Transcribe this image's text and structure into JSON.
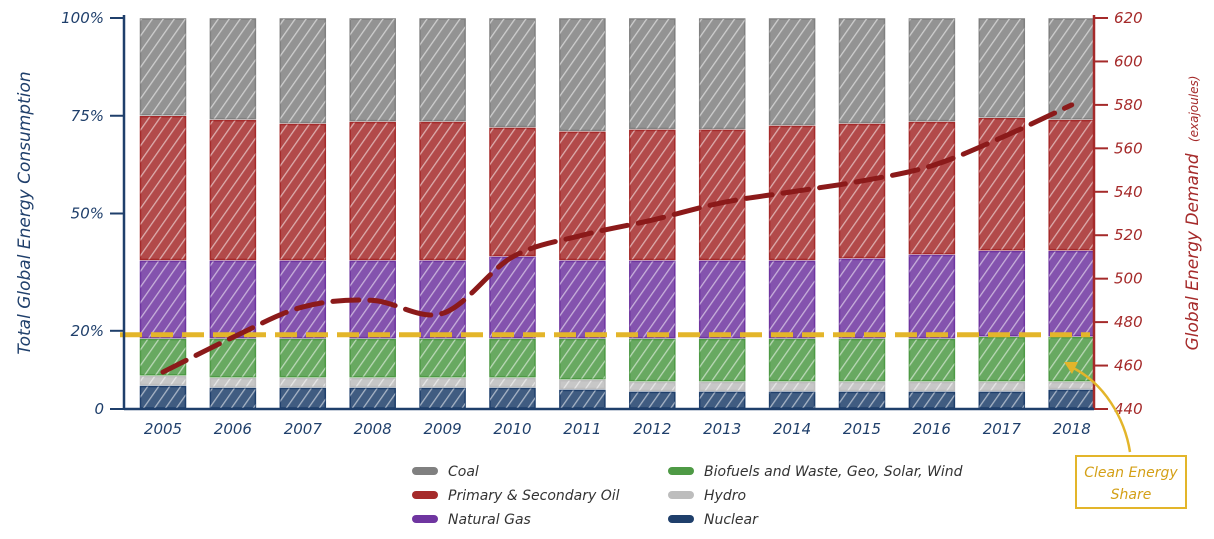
{
  "chart_data": {
    "type": "bar",
    "stacked": true,
    "categories": [
      "2005",
      "2006",
      "2007",
      "2008",
      "2009",
      "2010",
      "2011",
      "2012",
      "2013",
      "2014",
      "2015",
      "2016",
      "2017",
      "2018"
    ],
    "series": [
      {
        "name": "Nuclear",
        "color": "#1f3f6b",
        "values": [
          6.0,
          5.5,
          5.5,
          5.5,
          5.5,
          5.5,
          5.0,
          4.5,
          4.5,
          4.5,
          4.5,
          4.5,
          4.5,
          5.0
        ]
      },
      {
        "name": "Hydro",
        "color": "#bdbdbd",
        "values": [
          2.5,
          2.5,
          2.5,
          2.5,
          2.5,
          2.5,
          2.5,
          2.5,
          2.5,
          2.5,
          2.5,
          2.5,
          2.5,
          2.0
        ]
      },
      {
        "name": "Biofuels and Waste, Geo, Solar, Wind",
        "color": "#4e9a45",
        "values": [
          9.5,
          10.0,
          10.0,
          10.0,
          10.0,
          10.0,
          10.5,
          11.0,
          11.0,
          11.0,
          11.0,
          11.0,
          11.5,
          11.5
        ]
      },
      {
        "name": "Natural Gas",
        "color": "#6f35a0",
        "values": [
          20.0,
          20.0,
          20.0,
          20.0,
          20.0,
          21.0,
          20.0,
          20.0,
          20.0,
          20.0,
          20.5,
          21.5,
          22.0,
          22.0
        ]
      },
      {
        "name": "Primary & Secondary Oil",
        "color": "#a52a2a",
        "values": [
          37.0,
          36.0,
          35.0,
          35.5,
          35.5,
          33.0,
          33.0,
          33.5,
          33.5,
          34.5,
          34.5,
          34.0,
          34.0,
          33.5
        ]
      },
      {
        "name": "Coal",
        "color": "#808080",
        "values": [
          25.0,
          26.0,
          27.0,
          26.5,
          26.5,
          28.0,
          29.0,
          28.5,
          28.5,
          27.5,
          27.0,
          26.5,
          25.5,
          26.0
        ]
      }
    ],
    "line_series": {
      "name": "Global Energy Demand (exajoules)",
      "color": "#8b1a1a",
      "axis": "right",
      "values": [
        457,
        473,
        487,
        490,
        484,
        510,
        520,
        527,
        535,
        540,
        545,
        552,
        565,
        580
      ]
    },
    "reference_line": {
      "color": "#e3b52a",
      "y_share": 19.0
    },
    "left_axis": {
      "label": "Total Global Energy Consumption",
      "ylim": [
        0,
        100
      ],
      "ticks": [
        0,
        20,
        50,
        75,
        100
      ],
      "tick_labels": [
        "0",
        "20%",
        "50%",
        "75%",
        "100%"
      ],
      "color": "#1f3f6b"
    },
    "right_axis": {
      "label": "Global Energy Demand",
      "unit_label": "(exajoules)",
      "ylim": [
        440,
        620
      ],
      "ticks": [
        440,
        460,
        480,
        500,
        520,
        540,
        560,
        580,
        600,
        620
      ],
      "color": "#a52a2a"
    },
    "legend": {
      "columns": [
        [
          "Coal",
          "Primary & Secondary Oil",
          "Natural Gas"
        ],
        [
          "Biofuels and Waste, Geo, Solar, Wind",
          "Hydro",
          "Nuclear"
        ]
      ]
    },
    "annotation": {
      "line1": "Clean Energy",
      "line2": "Share",
      "color": "#e3b52a"
    }
  }
}
